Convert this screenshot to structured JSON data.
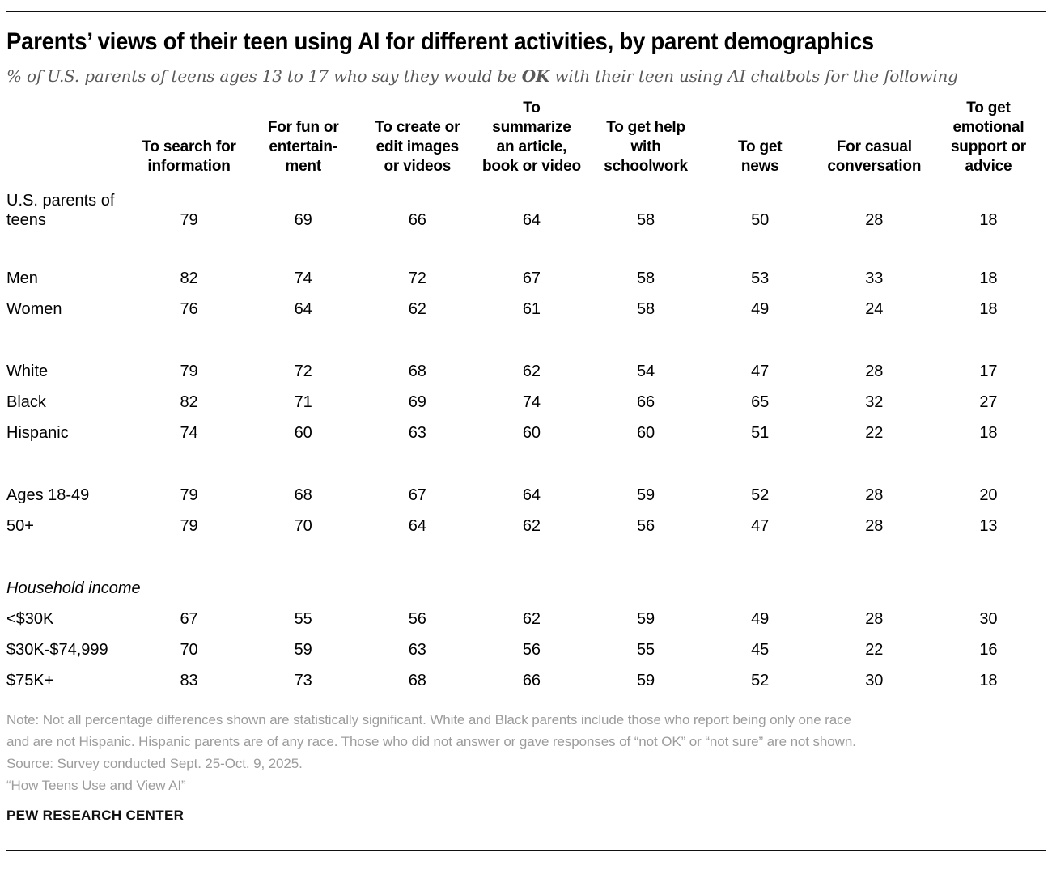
{
  "header": {
    "title": "Parents’ views of their teen using AI for different activities, by parent demographics",
    "subtitle_prefix": "% of U.S. parents of teens ages 13 to 17 who say they would be ",
    "subtitle_bold": "OK",
    "subtitle_suffix": " with their teen using AI chatbots for the following"
  },
  "chart_data": {
    "type": "table",
    "title": "Parents’ views of their teen using AI for different activities, by parent demographics",
    "subtitle": "% of U.S. parents of teens ages 13 to 17 who say they would be OK with their teen using AI chatbots for the following",
    "units": "percent",
    "columns": [
      "To search for information",
      "For fun or entertainment",
      "To create or edit images or videos",
      "To summarize an article, book or video",
      "To get help with schoolwork",
      "To get news",
      "For casual conversation",
      "To get emotional support or advice"
    ],
    "column_display_lines": [
      [
        "To search for",
        "information"
      ],
      [
        "For fun or",
        "entertain-",
        "ment"
      ],
      [
        "To create or",
        "edit images",
        "or videos"
      ],
      [
        "To",
        "summarize",
        "an article,",
        "book or video"
      ],
      [
        "To get help",
        "with",
        "schoolwork"
      ],
      [
        "To get",
        "news"
      ],
      [
        "For casual",
        "conversation"
      ],
      [
        "To get",
        "emotional",
        "support or",
        "advice"
      ]
    ],
    "groups": [
      {
        "rows": [
          {
            "label": "U.S. parents of teens",
            "label_lines": [
              "U.S. parents of",
              "teens"
            ],
            "values": [
              79,
              69,
              66,
              64,
              58,
              50,
              28,
              18
            ]
          }
        ]
      },
      {
        "rows": [
          {
            "label": "Men",
            "values": [
              82,
              74,
              72,
              67,
              58,
              53,
              33,
              18
            ]
          },
          {
            "label": "Women",
            "values": [
              76,
              64,
              62,
              61,
              58,
              49,
              24,
              18
            ]
          }
        ]
      },
      {
        "rows": [
          {
            "label": "White",
            "values": [
              79,
              72,
              68,
              62,
              54,
              47,
              28,
              17
            ]
          },
          {
            "label": "Black",
            "values": [
              82,
              71,
              69,
              74,
              66,
              65,
              32,
              27
            ]
          },
          {
            "label": "Hispanic",
            "values": [
              74,
              60,
              63,
              60,
              60,
              51,
              22,
              18
            ]
          }
        ]
      },
      {
        "rows": [
          {
            "label": "Ages 18-49",
            "values": [
              79,
              68,
              67,
              64,
              59,
              52,
              28,
              20
            ]
          },
          {
            "label": "50+",
            "values": [
              79,
              70,
              64,
              62,
              56,
              47,
              28,
              13
            ]
          }
        ]
      },
      {
        "section": "Household income",
        "rows": [
          {
            "label": "<$30K",
            "values": [
              67,
              55,
              56,
              62,
              59,
              49,
              28,
              30
            ]
          },
          {
            "label": "$30K-$74,999",
            "values": [
              70,
              59,
              63,
              56,
              55,
              45,
              22,
              16
            ]
          },
          {
            "label": "$75K+",
            "values": [
              83,
              73,
              68,
              66,
              59,
              52,
              30,
              18
            ]
          }
        ]
      }
    ]
  },
  "footer": {
    "note_lines": [
      "Note: Not all percentage differences shown are statistically significant. White and Black parents include those who report being only one race",
      "and are not Hispanic. Hispanic parents are of any race. Those who did not answer or gave responses of “not OK” or “not sure” are not shown."
    ],
    "source": "Source: Survey conducted Sept. 25-Oct. 9, 2025.",
    "quote": "“How Teens Use and View AI”",
    "brand": "PEW RESEARCH CENTER"
  },
  "colors": {
    "text": "#000000",
    "subtitle_gray": "#595959",
    "note_gray": "#9c9c9c",
    "rule": "#111111",
    "background": "#ffffff"
  }
}
